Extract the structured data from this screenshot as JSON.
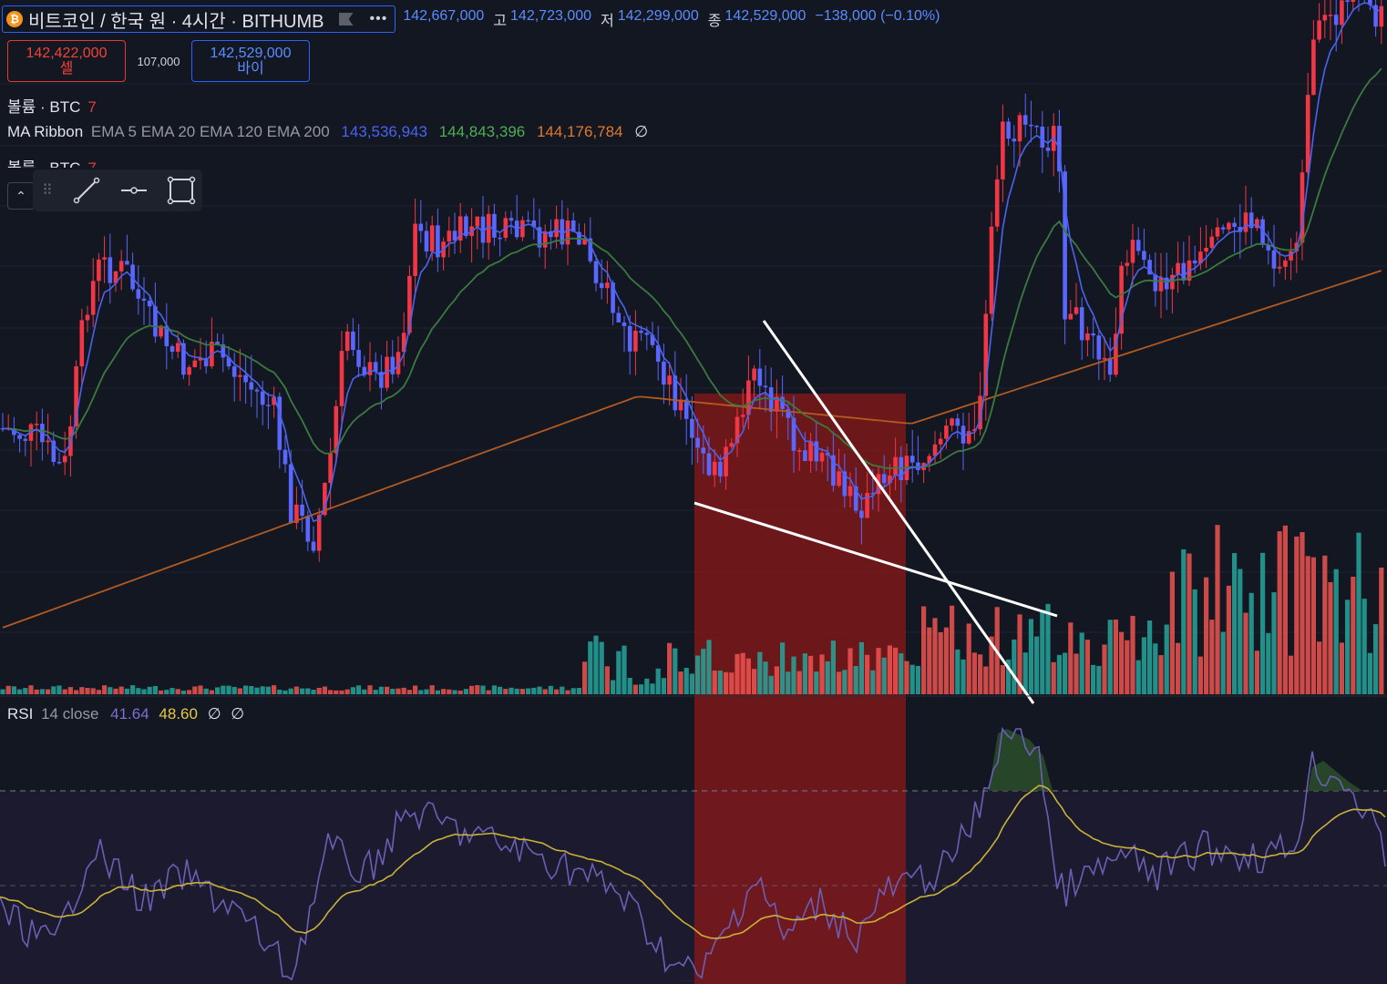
{
  "header": {
    "symbol_title": "비트코인 / 한국 원 · 4시간 · BITHUMB",
    "coin_icon": "bitcoin-icon",
    "more_label": "•••",
    "open_label": "",
    "open": "142,667,000",
    "high_label": "고",
    "high": "142,723,000",
    "low_label": "저",
    "low": "142,299,000",
    "close_label": "종",
    "close": "142,529,000",
    "change": "−138,000 (−0.10%)"
  },
  "trade": {
    "sell_price": "142,422,000",
    "sell_label": "셀",
    "spread": "107,000",
    "buy_price": "142,529,000",
    "buy_label": "바이"
  },
  "legends": {
    "volume1_name": "볼륨 · BTC",
    "volume1_num": "7",
    "ma_name": "MA Ribbon",
    "ma_params": "EMA 5 EMA 20 EMA 120 EMA 200",
    "ma_v1": "143,536,943",
    "ma_v2": "144,843,396",
    "ma_v3": "144,176,784",
    "ma_v4": "∅",
    "volume2_name": "볼륨 · BTC",
    "volume2_num": "7",
    "rsi_name": "RSI",
    "rsi_params": "14 close",
    "rsi_v1": "41.64",
    "rsi_v2": "48.60",
    "rsi_v3": "∅",
    "rsi_v4": "∅"
  },
  "colors": {
    "background": "#131722",
    "up": "#f23645",
    "down": "#5a67ff",
    "ema5": "#4a63f0",
    "ema20": "#3b7a3f",
    "ema120": "#b35a1f",
    "rsi_line": "#6b5fb5",
    "rsi_ma": "#c9b13a",
    "vol_up": "#26a69a",
    "vol_down": "#ef5350",
    "highlight": "#8b1a1a"
  },
  "toolbar_icons": [
    "drag-handle-icon",
    "trend-line-icon",
    "horizontal-ray-icon",
    "rectangle-icon"
  ],
  "chart_data": {
    "type": "candlestick",
    "series": [
      "EMA 5",
      "EMA 20",
      "EMA 120",
      "EMA 200",
      "Volume",
      "RSI 14",
      "RSI MA"
    ],
    "rsi_bands": [
      70,
      50,
      30
    ],
    "annotations": [
      "highlight-box",
      "trend-line-upper",
      "trend-line-lower"
    ]
  }
}
